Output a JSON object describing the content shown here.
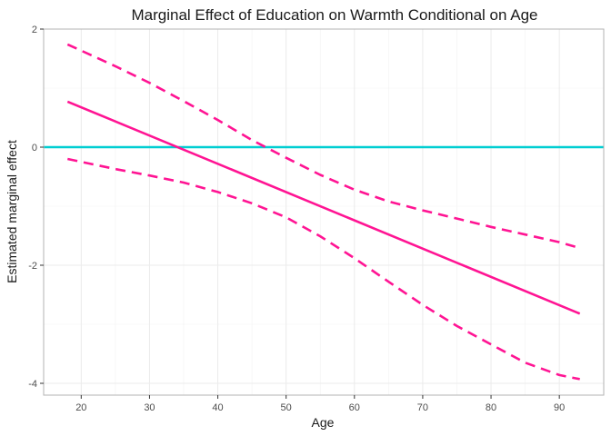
{
  "chart_data": {
    "type": "line",
    "title": "Marginal Effect of Education on Warmth Conditional on Age",
    "xlabel": "Age",
    "ylabel": "Estimated marginal effect",
    "xlim": [
      14.5,
      96.5
    ],
    "ylim": [
      -4.2,
      2.0
    ],
    "x_ticks": [
      20,
      30,
      40,
      50,
      60,
      70,
      80,
      90
    ],
    "y_ticks": [
      -4,
      -2,
      0,
      2
    ],
    "grid": true,
    "legend": "none",
    "reference_line": {
      "y": 0,
      "color": "#00CED1"
    },
    "series": [
      {
        "role": "estimate",
        "style": "solid",
        "color": "#FF1493",
        "x": [
          18,
          93
        ],
        "y": [
          0.77,
          -2.82
        ]
      },
      {
        "role": "upper_ci",
        "style": "dashed",
        "color": "#FF1493",
        "x": [
          18,
          25,
          30,
          35,
          40,
          45,
          50,
          55,
          60,
          65,
          70,
          75,
          80,
          85,
          90,
          93
        ],
        "y": [
          1.74,
          1.37,
          1.09,
          0.78,
          0.46,
          0.12,
          -0.18,
          -0.47,
          -0.72,
          -0.92,
          -1.07,
          -1.21,
          -1.35,
          -1.48,
          -1.61,
          -1.71
        ]
      },
      {
        "role": "lower_ci",
        "style": "dashed",
        "color": "#FF1493",
        "x": [
          18,
          25,
          30,
          35,
          40,
          45,
          50,
          55,
          60,
          65,
          70,
          75,
          80,
          85,
          90,
          93
        ],
        "y": [
          -0.2,
          -0.37,
          -0.48,
          -0.6,
          -0.76,
          -0.95,
          -1.19,
          -1.51,
          -1.88,
          -2.28,
          -2.67,
          -3.03,
          -3.34,
          -3.65,
          -3.86,
          -3.93
        ]
      }
    ]
  }
}
